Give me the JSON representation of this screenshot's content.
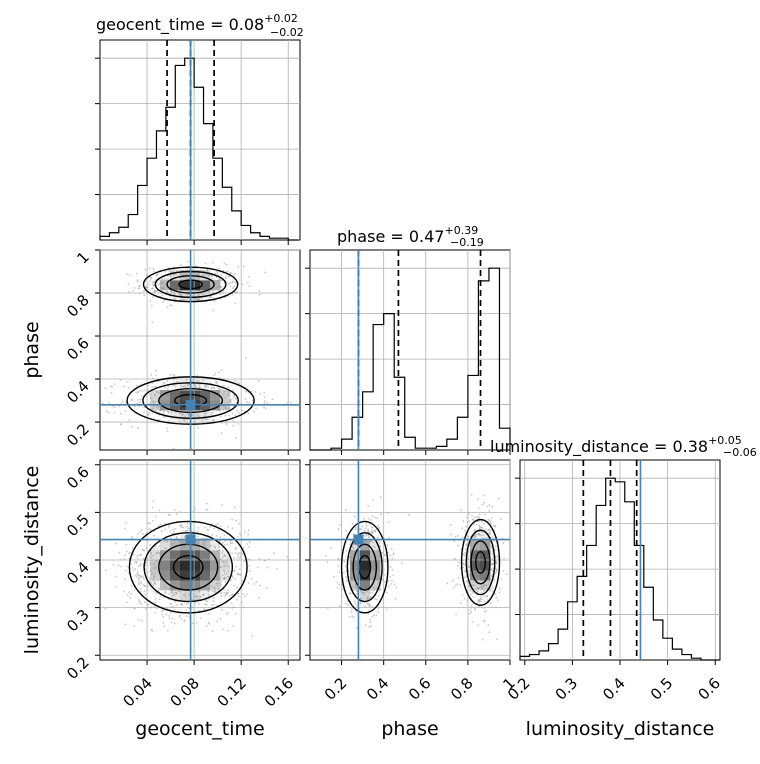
{
  "truth_color": "#4682b4",
  "chart_data": [
    {
      "type": "histogram",
      "panel": "geocent_time-marginal",
      "title": {
        "text": "geocent_time = 0.08",
        "sup": "+0.02",
        "sub": "−0.02"
      },
      "xlim": [
        0.0,
        0.17
      ],
      "xticks": [
        0.04,
        0.08,
        0.12,
        0.16
      ],
      "bin_edges": [
        0.0,
        0.008,
        0.016,
        0.024,
        0.032,
        0.04,
        0.048,
        0.056,
        0.064,
        0.072,
        0.08,
        0.088,
        0.096,
        0.104,
        0.112,
        0.12,
        0.128,
        0.136,
        0.144,
        0.152,
        0.16,
        0.168
      ],
      "counts": [
        0.02,
        0.04,
        0.07,
        0.14,
        0.3,
        0.45,
        0.6,
        0.73,
        0.96,
        1.0,
        0.84,
        0.64,
        0.45,
        0.29,
        0.16,
        0.08,
        0.04,
        0.02,
        0.01,
        0.01,
        0.0
      ],
      "quantiles": [
        0.057,
        0.077,
        0.097
      ],
      "truth": 0.077
    },
    {
      "type": "histogram",
      "panel": "phase-marginal",
      "title": {
        "text": "phase = 0.47",
        "sup": "+0.39",
        "sub": "−0.19"
      },
      "xlim": [
        0.05,
        1.0
      ],
      "xticks": [
        0.2,
        0.4,
        0.6,
        0.8,
        1.0
      ],
      "bin_edges": [
        0.05,
        0.1,
        0.15,
        0.2,
        0.25,
        0.3,
        0.35,
        0.4,
        0.45,
        0.5,
        0.55,
        0.6,
        0.65,
        0.7,
        0.75,
        0.8,
        0.85,
        0.9,
        0.95,
        1.0
      ],
      "counts": [
        0.0,
        0.0,
        0.01,
        0.06,
        0.18,
        0.32,
        0.69,
        0.75,
        0.4,
        0.07,
        0.01,
        0.01,
        0.02,
        0.06,
        0.18,
        0.41,
        0.93,
        1.0,
        0.12
      ],
      "quantiles": [
        0.28,
        0.47,
        0.86
      ],
      "truth": 0.28
    },
    {
      "type": "histogram",
      "panel": "luminosity_distance-marginal",
      "title": {
        "text": "luminosity_distance = 0.38",
        "sup": "+0.05",
        "sub": "−0.06"
      },
      "xlim": [
        0.19,
        0.61
      ],
      "xticks": [
        0.2,
        0.3,
        0.4,
        0.5,
        0.6
      ],
      "bin_edges": [
        0.19,
        0.21,
        0.23,
        0.25,
        0.27,
        0.29,
        0.31,
        0.33,
        0.35,
        0.37,
        0.39,
        0.41,
        0.43,
        0.45,
        0.47,
        0.49,
        0.51,
        0.53,
        0.55,
        0.57,
        0.59,
        0.61
      ],
      "counts": [
        0.02,
        0.03,
        0.05,
        0.09,
        0.17,
        0.32,
        0.46,
        0.63,
        0.85,
        1.0,
        0.98,
        0.87,
        0.63,
        0.4,
        0.22,
        0.12,
        0.06,
        0.03,
        0.01,
        0.0,
        0.0
      ],
      "quantiles": [
        0.323,
        0.38,
        0.435
      ],
      "truth": 0.443
    },
    {
      "type": "scatter",
      "panel": "phase-vs-geocent_time",
      "xlim": [
        0.0,
        0.17
      ],
      "ylim": [
        0.07,
        1.0
      ],
      "yticks": [
        0.2,
        0.4,
        0.6,
        0.8,
        1.0
      ],
      "modes": [
        {
          "cx": 0.077,
          "cy": 0.84,
          "sx": 0.02,
          "sy": 0.04,
          "weight": 0.5
        },
        {
          "cx": 0.077,
          "cy": 0.3,
          "sx": 0.027,
          "sy": 0.055,
          "weight": 0.5
        }
      ],
      "truth": {
        "x": 0.077,
        "y": 0.28
      }
    },
    {
      "type": "scatter",
      "panel": "luminosity_distance-vs-geocent_time",
      "xlim": [
        0.0,
        0.17
      ],
      "ylim": [
        0.19,
        0.61
      ],
      "yticks": [
        0.2,
        0.3,
        0.4,
        0.5,
        0.6
      ],
      "modes": [
        {
          "cx": 0.075,
          "cy": 0.385,
          "sx": 0.025,
          "sy": 0.048,
          "weight": 1.0
        }
      ],
      "truth": {
        "x": 0.077,
        "y": 0.443
      }
    },
    {
      "type": "scatter",
      "panel": "luminosity_distance-vs-phase",
      "xlim": [
        0.05,
        1.0
      ],
      "ylim": [
        0.19,
        0.61
      ],
      "modes": [
        {
          "cx": 0.31,
          "cy": 0.385,
          "sx": 0.055,
          "sy": 0.048,
          "weight": 0.5
        },
        {
          "cx": 0.86,
          "cy": 0.395,
          "sx": 0.045,
          "sy": 0.045,
          "weight": 0.5
        }
      ],
      "truth": {
        "x": 0.28,
        "y": 0.443
      }
    }
  ],
  "axis_labels": {
    "x": [
      "geocent_time",
      "phase",
      "luminosity_distance"
    ],
    "y": [
      "phase",
      "luminosity_distance"
    ]
  }
}
